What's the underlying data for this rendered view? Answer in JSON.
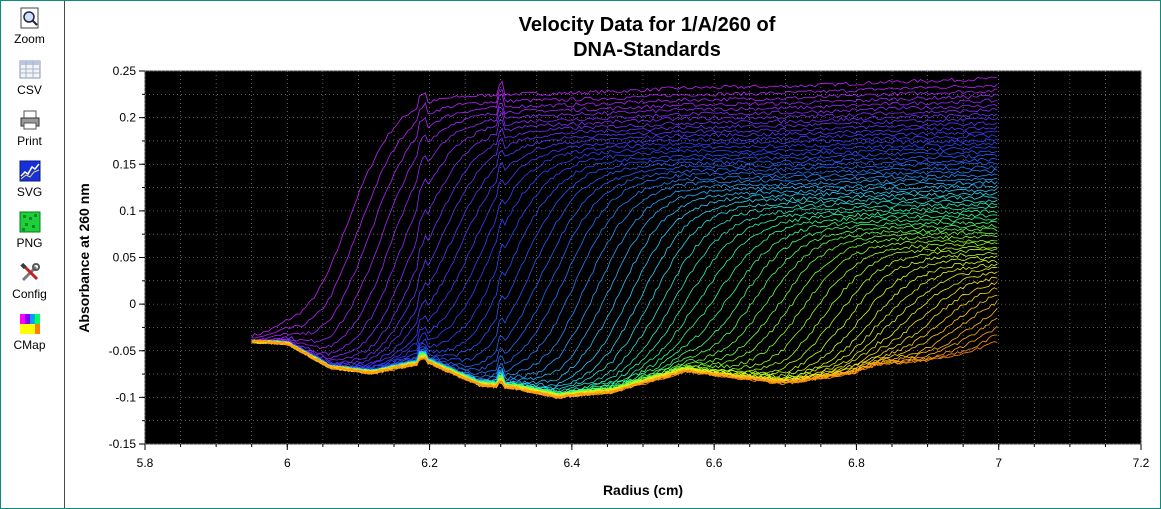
{
  "toolbar": {
    "items": [
      {
        "label": "Zoom",
        "icon": "zoom-icon"
      },
      {
        "label": "CSV",
        "icon": "csv-icon"
      },
      {
        "label": "Print",
        "icon": "printer-icon"
      },
      {
        "label": "SVG",
        "icon": "svg-icon"
      },
      {
        "label": "PNG",
        "icon": "png-icon"
      },
      {
        "label": "Config",
        "icon": "config-icon"
      },
      {
        "label": "CMap",
        "icon": "colormap-icon"
      }
    ]
  },
  "colors": {
    "plot_background": "#000000",
    "grid": "#9a9a9a",
    "frame_border": "#0f8a7e",
    "colormap": [
      "#c020ff",
      "#7a2cff",
      "#2f3dff",
      "#1f6cff",
      "#25d0ff",
      "#25ff9a",
      "#7cff2a",
      "#d6ff1a",
      "#ffd21a",
      "#ff8c10"
    ]
  },
  "chart_data": {
    "type": "line",
    "title": "Velocity Data for 1/A/260 of",
    "subtitle": "DNA-Standards",
    "xlabel": "Radius (cm)",
    "ylabel": "Absorbance at 260 nm",
    "xlim": [
      5.8,
      7.2
    ],
    "ylim": [
      -0.15,
      0.25
    ],
    "xticks": [
      "5.8",
      "6",
      "6.2",
      "6.4",
      "6.6",
      "6.8",
      "7",
      "7.2"
    ],
    "yticks": [
      "0.25",
      "0.2",
      "0.15",
      "0.1",
      "0.05",
      "0",
      "-0.05",
      "-0.1",
      "-0.15"
    ],
    "grid": true,
    "series_count": 60,
    "radius_range": [
      5.95,
      7.0
    ],
    "spike_positions": [
      6.19,
      6.3
    ],
    "plateau_start": [
      0.0,
      0.03,
      0.05,
      0.08,
      0.1,
      0.12,
      0.14,
      0.155,
      0.17,
      0.18,
      0.19,
      0.2
    ],
    "boundary_positions": [
      6.08,
      6.19,
      6.28,
      6.38,
      6.49,
      6.6,
      6.71,
      6.83,
      6.93,
      7.03
    ],
    "baseline": {
      "x": [
        5.95,
        6.0,
        6.06,
        6.12,
        6.17,
        6.2,
        6.27,
        6.32,
        6.38,
        6.46,
        6.5,
        6.56,
        6.62,
        6.7,
        6.79,
        6.83,
        6.9,
        7.0
      ],
      "y": [
        -0.04,
        -0.042,
        -0.068,
        -0.074,
        -0.066,
        -0.063,
        -0.087,
        -0.09,
        -0.1,
        -0.094,
        -0.085,
        -0.072,
        -0.078,
        -0.085,
        -0.075,
        -0.065,
        -0.062,
        -0.055
      ]
    }
  }
}
